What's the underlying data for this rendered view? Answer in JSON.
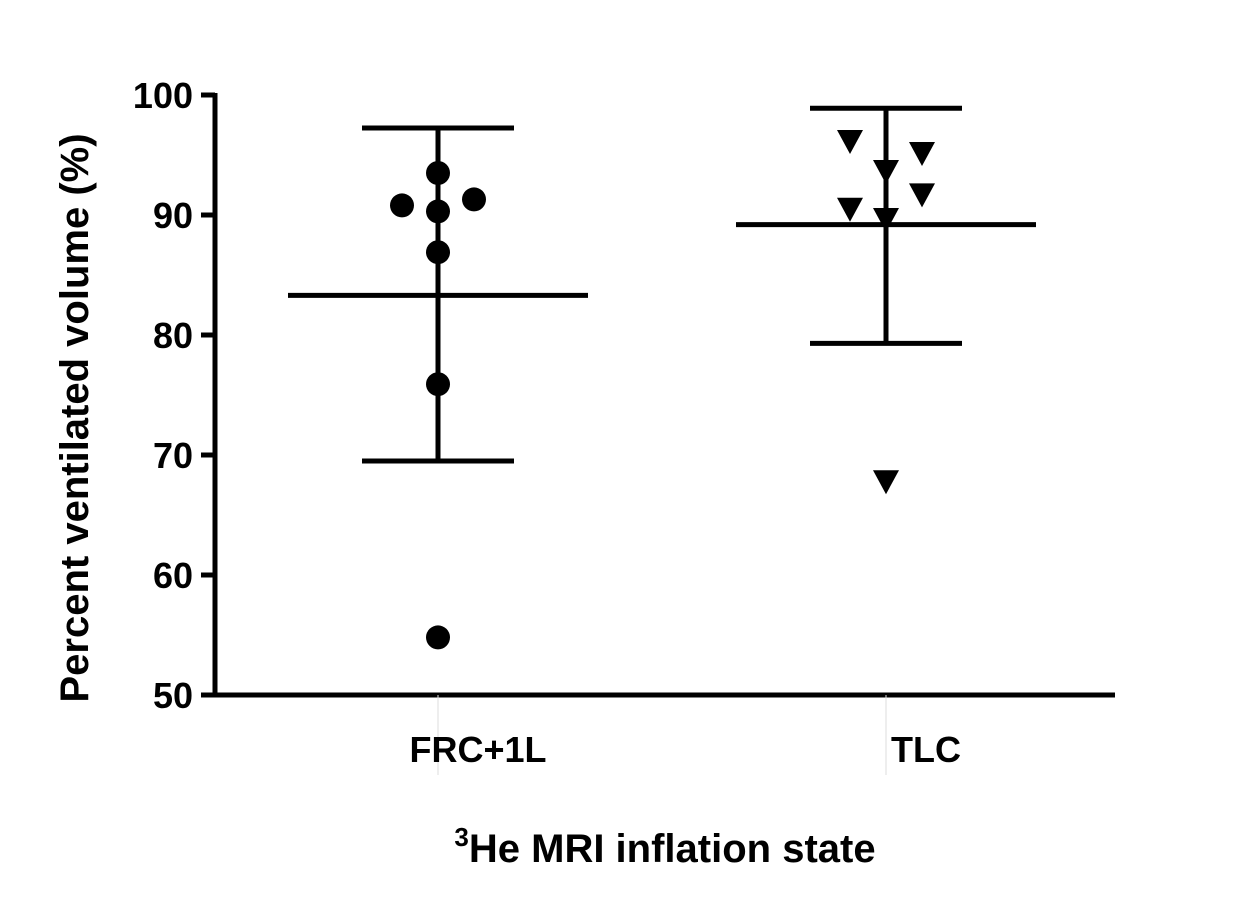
{
  "chart_data": {
    "type": "scatter",
    "title": "",
    "xlabel_superscript": "3",
    "xlabel": "He MRI inflation state",
    "ylabel": "Percent ventilated volume (%)",
    "ylim": [
      50,
      100
    ],
    "yticks": [
      50,
      60,
      70,
      80,
      90,
      100
    ],
    "categories": [
      "FRC+1L",
      "TLC"
    ],
    "grid": false,
    "series": [
      {
        "name": "FRC+1L",
        "marker": "circle",
        "points": [
          {
            "offset": -1,
            "y": 90.8
          },
          {
            "offset": 0,
            "y": 93.5
          },
          {
            "offset": 0,
            "y": 90.3
          },
          {
            "offset": 1,
            "y": 91.3
          },
          {
            "offset": 0,
            "y": 86.9
          },
          {
            "offset": 0,
            "y": 75.9
          },
          {
            "offset": 0,
            "y": 54.8
          }
        ],
        "mean": 83.3,
        "error_upper": 97.25,
        "error_lower": 69.5
      },
      {
        "name": "TLC",
        "marker": "triangle-down",
        "points": [
          {
            "offset": -1,
            "y": 96.25
          },
          {
            "offset": 1,
            "y": 95.25
          },
          {
            "offset": 0,
            "y": 93.75
          },
          {
            "offset": 1,
            "y": 91.8
          },
          {
            "offset": -1,
            "y": 90.6
          },
          {
            "offset": 0,
            "y": 89.75
          },
          {
            "offset": 0,
            "y": 67.9
          }
        ],
        "mean": 89.2,
        "error_upper": 98.9,
        "error_lower": 79.3
      }
    ]
  }
}
